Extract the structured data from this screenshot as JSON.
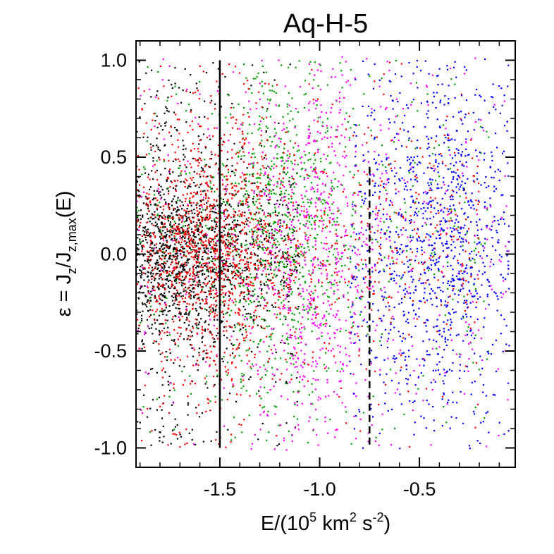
{
  "chart_data": {
    "type": "scatter",
    "title": "Aq-H-5",
    "xlabel": {
      "prefix": "E/(10",
      "sup1": "5",
      "mid": " km",
      "sup2": "2",
      "unit": " s",
      "sup3": "-2",
      "suffix": ")"
    },
    "ylabel": {
      "epsilon": "ε",
      "eq": " =  J",
      "sub1": "z",
      "slash": "/J",
      "sub2": "z,max",
      "tail": "(E)"
    },
    "xlim": [
      -1.92,
      -0.02
    ],
    "ylim": [
      -1.1,
      1.1
    ],
    "xticks": [
      -1.5,
      -1.0,
      -0.5
    ],
    "xtick_labels": [
      "-1.5",
      "-1.0",
      "-0.5"
    ],
    "yticks": [
      -1.0,
      -0.5,
      0.0,
      0.5,
      1.0
    ],
    "ytick_labels": [
      "-1.0",
      "-0.5",
      "0.0",
      "0.5",
      "1.0"
    ],
    "grid": false,
    "reference_lines": [
      {
        "x": -1.5,
        "y_range": [
          -1.0,
          1.0
        ],
        "style": "solid"
      },
      {
        "x": -0.75,
        "y_range": [
          -1.0,
          0.45
        ],
        "style": "dashed"
      }
    ],
    "series": [
      {
        "color": "#000000",
        "x_range": [
          -1.92,
          -1.1
        ],
        "x_peak": -1.72,
        "y_center": 0.0,
        "y_spread": 0.22,
        "density": "high"
      },
      {
        "color": "#00a000",
        "x_range": [
          -1.92,
          -0.15
        ],
        "x_peak": -1.2,
        "y_center": 0.1,
        "y_spread": 0.4,
        "density": "medium"
      },
      {
        "color": "#ff00ff",
        "x_range": [
          -1.92,
          -0.05
        ],
        "x_peak": -1.0,
        "y_center": 0.05,
        "y_spread": 0.5,
        "density": "medium"
      },
      {
        "color": "#ff0000",
        "x_range": [
          -1.92,
          -0.2
        ],
        "x_peak": -1.55,
        "y_center": 0.05,
        "y_spread": 0.3,
        "density": "high"
      },
      {
        "color": "#0000ff",
        "x_range": [
          -0.85,
          -0.05
        ],
        "x_peak": -0.4,
        "y_center": 0.05,
        "y_spread": 0.45,
        "density": "medium"
      }
    ]
  }
}
